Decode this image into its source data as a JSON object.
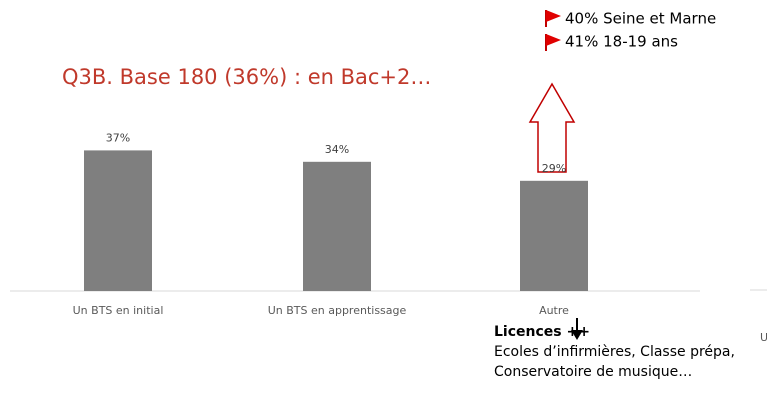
{
  "chart_data": {
    "type": "bar",
    "title": "Q3B. Base 180 (36%) : en Bac+2…",
    "categories": [
      "Un BTS en initial",
      "Un BTS en apprentissage",
      "Autre"
    ],
    "values": [
      37,
      34,
      29
    ],
    "value_labels": [
      "37%",
      "34%",
      "29%"
    ],
    "color": "#7f7f7f",
    "ylim": [
      0,
      50
    ],
    "annotations": {
      "flags": [
        "40% Seine et Marne",
        "41% 18-19 ans"
      ],
      "note_title": "Licences ++",
      "note_text": "Ecoles d’infirmières, Classe prépa, Conservatoire de musique…",
      "cut_label": "U"
    }
  }
}
